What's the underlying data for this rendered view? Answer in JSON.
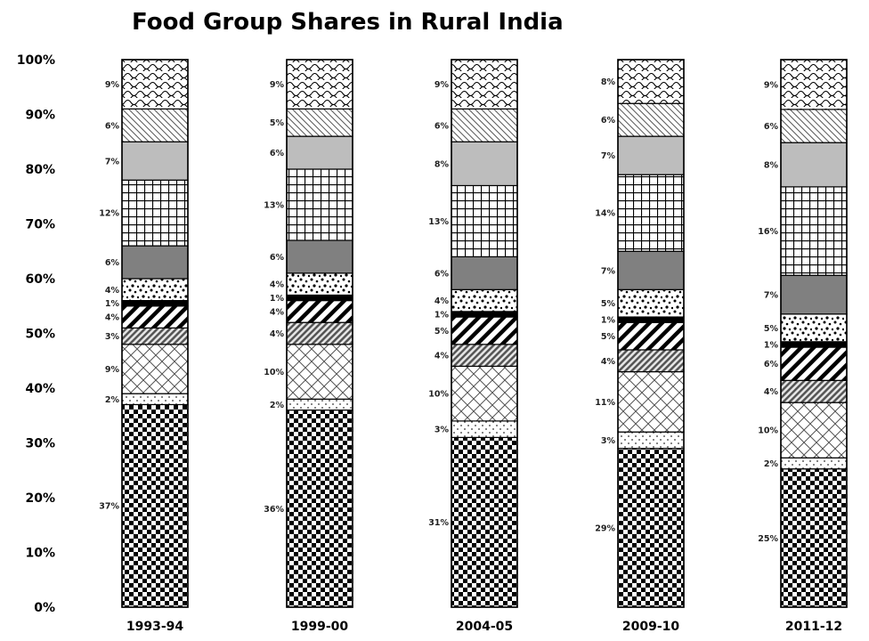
{
  "chart_data": {
    "type": "bar",
    "stacked": true,
    "percent_stacked": true,
    "title": "Food Group Shares in Rural India",
    "xlabel": "",
    "ylabel": "",
    "ylim": [
      0,
      100
    ],
    "y_ticks": [
      "0%",
      "10%",
      "20%",
      "30%",
      "40%",
      "50%",
      "60%",
      "70%",
      "80%",
      "90%",
      "100%"
    ],
    "grid": false,
    "legend": "none",
    "categories": [
      "1993-94",
      "1999-00",
      "2004-05",
      "2009-10",
      "2011-12"
    ],
    "series": [
      {
        "values": [
          37,
          36,
          31,
          29,
          25
        ],
        "labels": [
          "37%",
          "36%",
          "31%",
          "29%",
          "25%"
        ],
        "pattern": "checker",
        "color": "#000000"
      },
      {
        "values": [
          2,
          2,
          3,
          3,
          2
        ],
        "labels": [
          "2%",
          "2%",
          "3%",
          "3%",
          "2%"
        ],
        "pattern": "dots",
        "color": "#ffffff"
      },
      {
        "values": [
          9,
          10,
          10,
          11,
          10
        ],
        "labels": [
          "9%",
          "10%",
          "10%",
          "11%",
          "10%"
        ],
        "pattern": "crosshatch-diag",
        "color": "#ffffff"
      },
      {
        "values": [
          3,
          4,
          4,
          4,
          4
        ],
        "labels": [
          "3%",
          "4%",
          "4%",
          "4%",
          "4%"
        ],
        "pattern": "dense-diag",
        "color": "#7a7a7a"
      },
      {
        "values": [
          4,
          4,
          5,
          5,
          6
        ],
        "labels": [
          "4%",
          "4%",
          "5%",
          "5%",
          "6%"
        ],
        "pattern": "wide-diag",
        "color": "#000000"
      },
      {
        "values": [
          1,
          1,
          1,
          1,
          1
        ],
        "labels": [
          "1%",
          "1%",
          "1%",
          "1%",
          "1%"
        ],
        "pattern": "solid",
        "color": "#000000"
      },
      {
        "values": [
          4,
          4,
          4,
          5,
          5
        ],
        "labels": [
          "4%",
          "4%",
          "4%",
          "5%",
          "5%"
        ],
        "pattern": "confetti",
        "color": "#000000"
      },
      {
        "values": [
          6,
          6,
          6,
          7,
          7
        ],
        "labels": [
          "6%",
          "6%",
          "6%",
          "7%",
          "7%"
        ],
        "pattern": "solid",
        "color": "#808080"
      },
      {
        "values": [
          12,
          13,
          13,
          14,
          16
        ],
        "labels": [
          "12%",
          "13%",
          "13%",
          "14%",
          "16%"
        ],
        "pattern": "grid",
        "color": "#000000"
      },
      {
        "values": [
          7,
          6,
          8,
          7,
          8
        ],
        "labels": [
          "7%",
          "6%",
          "8%",
          "7%",
          "8%"
        ],
        "pattern": "solid",
        "color": "#bdbdbd"
      },
      {
        "values": [
          6,
          5,
          6,
          6,
          6
        ],
        "labels": [
          "6%",
          "5%",
          "6%",
          "6%",
          "6%"
        ],
        "pattern": "light-diag",
        "color": "#000000"
      },
      {
        "values": [
          9,
          9,
          9,
          8,
          9
        ],
        "labels": [
          "9%",
          "9%",
          "9%",
          "8%",
          "9%"
        ],
        "pattern": "scales",
        "color": "#000000"
      }
    ]
  }
}
